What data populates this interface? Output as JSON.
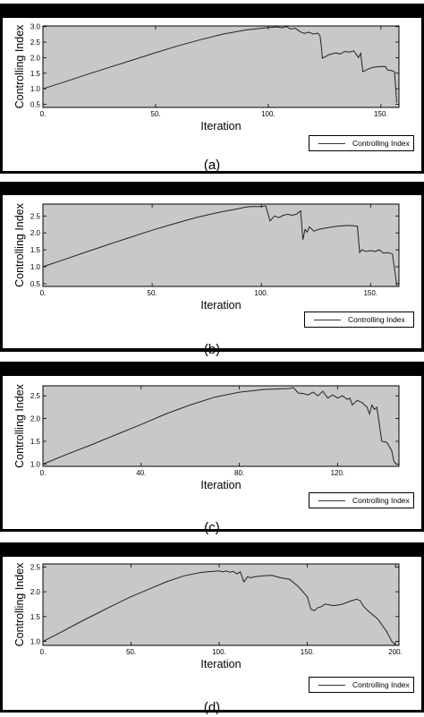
{
  "chart_data": [
    {
      "type": "line",
      "caption": "(a)",
      "xlabel": "Iteration",
      "ylabel": "Controlling Index",
      "xlim": [
        0,
        158
      ],
      "ylim": [
        0.4,
        3.02
      ],
      "xticks": [
        0,
        50,
        100,
        150
      ],
      "xtick_labels": [
        "0.",
        "50.",
        "100.",
        "150."
      ],
      "yticks": [
        0.5,
        1.0,
        1.5,
        2.0,
        2.5,
        3.0
      ],
      "ytick_labels": [
        "0.5",
        "1.0",
        "1.5",
        "2.0",
        "2.5",
        "3.0"
      ],
      "grid": false,
      "legend_position": "bottom-right",
      "series": [
        {
          "name": "Controlling Index",
          "x": [
            0,
            10,
            20,
            30,
            40,
            50,
            60,
            70,
            80,
            90,
            100,
            104,
            106,
            108,
            110,
            112,
            114,
            116,
            118,
            120,
            122,
            123,
            123.5,
            124,
            127,
            130,
            132,
            134,
            136,
            138,
            140,
            141,
            141.5,
            142,
            144,
            146,
            148,
            150,
            152,
            153,
            155,
            156,
            157
          ],
          "y": [
            1.0,
            1.23,
            1.47,
            1.7,
            1.93,
            2.16,
            2.38,
            2.58,
            2.76,
            2.89,
            2.97,
            2.99,
            2.96,
            3.0,
            2.92,
            2.95,
            2.84,
            2.78,
            2.82,
            2.76,
            2.79,
            2.7,
            2.4,
            1.98,
            2.1,
            2.15,
            2.12,
            2.2,
            2.18,
            2.22,
            2.0,
            2.14,
            1.85,
            1.55,
            1.62,
            1.68,
            1.7,
            1.72,
            1.71,
            1.6,
            1.58,
            1.55,
            0.55
          ]
        }
      ]
    },
    {
      "type": "line",
      "caption": "(b)",
      "xlabel": "Iteration",
      "ylabel": "Controlling Index",
      "xlim": [
        0,
        163
      ],
      "ylim": [
        0.42,
        2.85
      ],
      "xticks": [
        0,
        50,
        100,
        150
      ],
      "xtick_labels": [
        "0.",
        "50.",
        "100.",
        "150."
      ],
      "yticks": [
        0.5,
        1.0,
        1.5,
        2.0,
        2.5
      ],
      "ytick_labels": [
        "0.5",
        "1.0",
        "1.5",
        "2.0",
        "2.5"
      ],
      "grid": false,
      "legend_position": "bottom-right",
      "series": [
        {
          "name": "Controlling Index",
          "x": [
            0,
            10,
            20,
            30,
            40,
            50,
            60,
            70,
            80,
            90,
            92,
            95,
            100,
            102,
            104,
            106,
            108,
            110,
            112,
            114,
            116,
            118,
            119,
            120,
            121,
            122,
            124,
            126,
            130,
            135,
            140,
            144,
            145,
            146,
            148,
            150,
            152,
            154,
            156,
            158,
            160,
            162
          ],
          "y": [
            1.0,
            1.22,
            1.44,
            1.66,
            1.87,
            2.08,
            2.27,
            2.45,
            2.6,
            2.72,
            2.75,
            2.78,
            2.78,
            2.8,
            2.35,
            2.5,
            2.45,
            2.52,
            2.55,
            2.52,
            2.55,
            2.65,
            1.8,
            2.1,
            2.02,
            2.18,
            2.05,
            2.1,
            2.15,
            2.2,
            2.22,
            2.2,
            1.42,
            1.5,
            1.45,
            1.48,
            1.45,
            1.5,
            1.4,
            1.42,
            1.38,
            0.45
          ]
        }
      ]
    },
    {
      "type": "line",
      "caption": "(c)",
      "xlabel": "Iteration",
      "ylabel": "Controlling Index",
      "xlim": [
        0,
        145
      ],
      "ylim": [
        0.95,
        2.72
      ],
      "xticks": [
        0,
        40,
        80,
        120
      ],
      "xtick_labels": [
        "0.",
        "40.",
        "80.",
        "120."
      ],
      "yticks": [
        1.0,
        1.5,
        2.0,
        2.5
      ],
      "ytick_labels": [
        "1.0",
        "1.5",
        "2.0",
        "2.5"
      ],
      "grid": false,
      "legend_position": "bottom-right",
      "series": [
        {
          "name": "Controlling Index",
          "x": [
            0,
            10,
            20,
            30,
            40,
            50,
            60,
            70,
            80,
            90,
            100,
            102,
            104,
            106,
            108,
            110,
            112,
            114,
            116,
            118,
            120,
            122,
            124,
            125,
            126,
            128,
            130,
            132,
            133,
            134,
            135,
            136,
            138,
            140,
            142,
            143,
            144
          ],
          "y": [
            1.0,
            1.22,
            1.43,
            1.65,
            1.87,
            2.1,
            2.3,
            2.47,
            2.58,
            2.64,
            2.66,
            2.68,
            2.56,
            2.55,
            2.52,
            2.58,
            2.5,
            2.6,
            2.45,
            2.52,
            2.45,
            2.5,
            2.42,
            2.45,
            2.3,
            2.4,
            2.35,
            2.25,
            2.1,
            2.3,
            2.2,
            2.25,
            1.5,
            1.48,
            1.3,
            1.05,
            1.0
          ]
        }
      ]
    },
    {
      "type": "line",
      "caption": "(d)",
      "xlabel": "Iteration",
      "ylabel": "Controlling Index",
      "xlim": [
        0,
        202
      ],
      "ylim": [
        0.92,
        2.56
      ],
      "xticks": [
        0,
        50,
        100,
        150,
        200
      ],
      "xtick_labels": [
        "0.",
        "50.",
        "100.",
        "150.",
        "200."
      ],
      "yticks": [
        1.0,
        1.5,
        2.0,
        2.5
      ],
      "ytick_labels": [
        "1.0",
        "1.5",
        "2.0",
        "2.5"
      ],
      "grid": false,
      "legend_position": "bottom-right",
      "series": [
        {
          "name": "Controlling Index",
          "x": [
            0,
            10,
            20,
            30,
            40,
            50,
            60,
            70,
            80,
            90,
            100,
            102,
            104,
            106,
            108,
            110,
            112,
            114,
            116,
            118,
            120,
            125,
            130,
            135,
            140,
            145,
            150,
            152,
            154,
            156,
            158,
            160,
            165,
            170,
            175,
            178,
            180,
            182,
            185,
            190,
            195,
            198,
            200
          ],
          "y": [
            1.0,
            1.18,
            1.37,
            1.55,
            1.73,
            1.9,
            2.05,
            2.2,
            2.32,
            2.39,
            2.42,
            2.4,
            2.42,
            2.39,
            2.41,
            2.36,
            2.4,
            2.2,
            2.3,
            2.28,
            2.3,
            2.32,
            2.33,
            2.28,
            2.25,
            2.1,
            1.9,
            1.65,
            1.62,
            1.68,
            1.7,
            1.75,
            1.72,
            1.75,
            1.82,
            1.85,
            1.82,
            1.7,
            1.6,
            1.45,
            1.2,
            1.0,
            0.93
          ]
        }
      ]
    }
  ]
}
